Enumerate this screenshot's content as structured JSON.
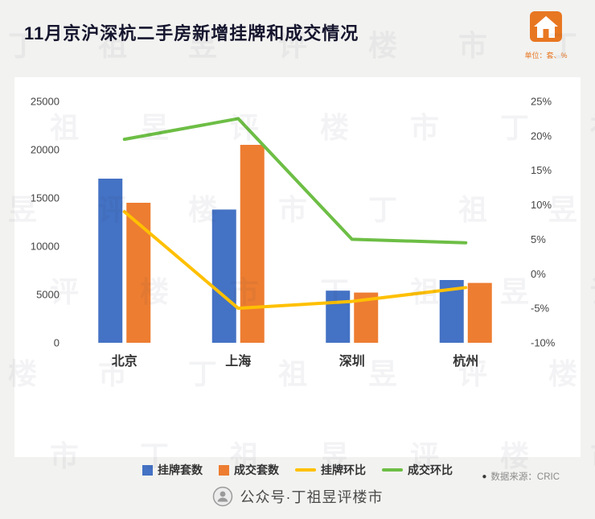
{
  "title": "11月京沪深杭二手房新增挂牌和成交情况",
  "unit_label": "单位：套、%",
  "watermark": "丁祖昱评楼市",
  "source": {
    "bullet": "●",
    "text": "数据来源：CRIC"
  },
  "footer": {
    "text": "公众号·丁祖昱评楼市"
  },
  "colors": {
    "title": "#15152e",
    "listings_bar": "#4472C4",
    "deals_bar": "#ED7D31",
    "listings_line": "#FFC000",
    "deals_line": "#6DBE45",
    "brand_orange": "#E87722",
    "axis_text": "#444444",
    "category_text": "#333333"
  },
  "chart_data": {
    "type": "combo-bar-line",
    "categories": [
      "北京",
      "上海",
      "深圳",
      "杭州"
    ],
    "category_slugs": [
      "beijing",
      "shanghai",
      "shenzhen",
      "hangzhou"
    ],
    "bar_series": [
      {
        "name": "挂牌套数",
        "slug": "listings",
        "color": "#4472C4",
        "values": [
          17000,
          13800,
          5400,
          6500
        ]
      },
      {
        "name": "成交套数",
        "slug": "deals",
        "color": "#ED7D31",
        "values": [
          14500,
          20500,
          5200,
          6200
        ]
      }
    ],
    "line_series": [
      {
        "name": "挂牌环比",
        "slug": "listings-mom",
        "color": "#FFC000",
        "values": [
          9,
          -5,
          -4,
          -2
        ]
      },
      {
        "name": "成交环比",
        "slug": "deals-mom",
        "color": "#6DBE45",
        "values": [
          19.5,
          22.5,
          5,
          4.5
        ]
      }
    ],
    "left_axis": {
      "min": 0,
      "max": 25000,
      "step": 5000,
      "ticks": [
        "25000",
        "20000",
        "15000",
        "10000",
        "5000",
        "0"
      ]
    },
    "right_axis": {
      "min": -10,
      "max": 25,
      "step": 5,
      "ticks": [
        "25%",
        "20%",
        "15%",
        "10%",
        "5%",
        "0%",
        "-5%",
        "-10%"
      ]
    },
    "grid": false,
    "legend_position": "bottom"
  },
  "legend": [
    {
      "label": "挂牌套数",
      "type": "square",
      "color": "#4472C4"
    },
    {
      "label": "成交套数",
      "type": "square",
      "color": "#ED7D31"
    },
    {
      "label": "挂牌环比",
      "type": "line",
      "color": "#FFC000"
    },
    {
      "label": "成交环比",
      "type": "line",
      "color": "#6DBE45"
    }
  ]
}
